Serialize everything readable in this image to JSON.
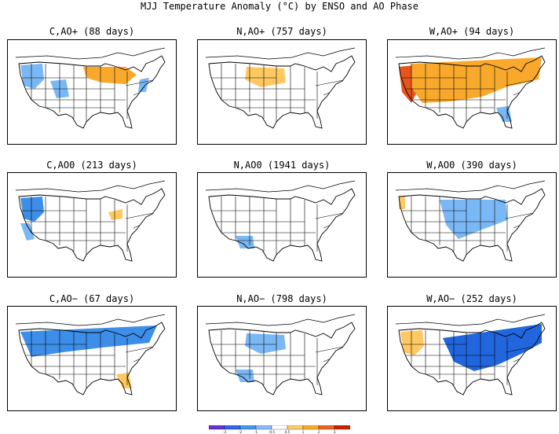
{
  "title": "MJJ Temperature Anomaly (°C) by ENSO and AO Phase",
  "panels": [
    {
      "label": "C,AO+ (88 days)",
      "enso": "C",
      "ao": "+",
      "days": 88,
      "anomalies": [
        {
          "region": "northwest",
          "sign": "cool",
          "strength": "weak"
        },
        {
          "region": "great-lakes-upper-midwest",
          "sign": "warm",
          "strength": "moderate"
        },
        {
          "region": "central-rockies",
          "sign": "cool",
          "strength": "weak"
        },
        {
          "region": "mid-atlantic",
          "sign": "cool",
          "strength": "weak"
        }
      ]
    },
    {
      "label": "N,AO+ (757 days)",
      "enso": "N",
      "ao": "+",
      "days": 757,
      "anomalies": [
        {
          "region": "northern-plains",
          "sign": "warm",
          "strength": "weak"
        }
      ]
    },
    {
      "label": "W,AO+ (94 days)",
      "enso": "W",
      "ao": "+",
      "days": 94,
      "anomalies": [
        {
          "region": "west-coast",
          "sign": "warm",
          "strength": "strong"
        },
        {
          "region": "most-of-us",
          "sign": "warm",
          "strength": "moderate"
        },
        {
          "region": "southeast",
          "sign": "cool",
          "strength": "weak"
        }
      ]
    },
    {
      "label": "C,AO0 (213 days)",
      "enso": "C",
      "ao": "0",
      "days": 213,
      "anomalies": [
        {
          "region": "northwest",
          "sign": "cool",
          "strength": "moderate"
        },
        {
          "region": "california",
          "sign": "cool",
          "strength": "weak"
        },
        {
          "region": "great-lakes",
          "sign": "warm",
          "strength": "weak"
        }
      ]
    },
    {
      "label": "N,AO0 (1941 days)",
      "enso": "N",
      "ao": "0",
      "days": 1941,
      "anomalies": [
        {
          "region": "southwest",
          "sign": "cool",
          "strength": "weak"
        }
      ]
    },
    {
      "label": "W,AO0 (390 days)",
      "enso": "W",
      "ao": "0",
      "days": 390,
      "anomalies": [
        {
          "region": "northern-plains-midwest",
          "sign": "cool",
          "strength": "weak"
        },
        {
          "region": "pacific-northwest",
          "sign": "warm",
          "strength": "weak"
        }
      ]
    },
    {
      "label": "C,AO− (67 days)",
      "enso": "C",
      "ao": "−",
      "days": 67,
      "anomalies": [
        {
          "region": "northern-tier",
          "sign": "cool",
          "strength": "moderate"
        },
        {
          "region": "southeast",
          "sign": "warm",
          "strength": "weak"
        }
      ]
    },
    {
      "label": "N,AO− (798 days)",
      "enso": "N",
      "ao": "−",
      "days": 798,
      "anomalies": [
        {
          "region": "northern-plains",
          "sign": "cool",
          "strength": "weak"
        },
        {
          "region": "southwest",
          "sign": "cool",
          "strength": "weak"
        }
      ]
    },
    {
      "label": "W,AO− (252 days)",
      "enso": "W",
      "ao": "−",
      "days": 252,
      "anomalies": [
        {
          "region": "northwest",
          "sign": "warm",
          "strength": "weak"
        },
        {
          "region": "midwest-northeast",
          "sign": "cool",
          "strength": "strong"
        }
      ]
    }
  ],
  "colorbar": {
    "ticks": [
      "-3",
      "-2",
      "-1",
      "-0.5",
      "0.5",
      "1",
      "2",
      "3"
    ],
    "colors": [
      "#6633cc",
      "#3366ee",
      "#4499ee",
      "#88bbff",
      "#ffffff",
      "#ffcc66",
      "#ffaa22",
      "#ee6622",
      "#cc2200"
    ]
  },
  "colors": {
    "cool_weak": "#7ab8f5",
    "cool_mod": "#3d8ee8",
    "cool_strong": "#2266dd",
    "warm_weak": "#ffc860",
    "warm_mod": "#f8a92c",
    "warm_strong": "#e8541c"
  }
}
